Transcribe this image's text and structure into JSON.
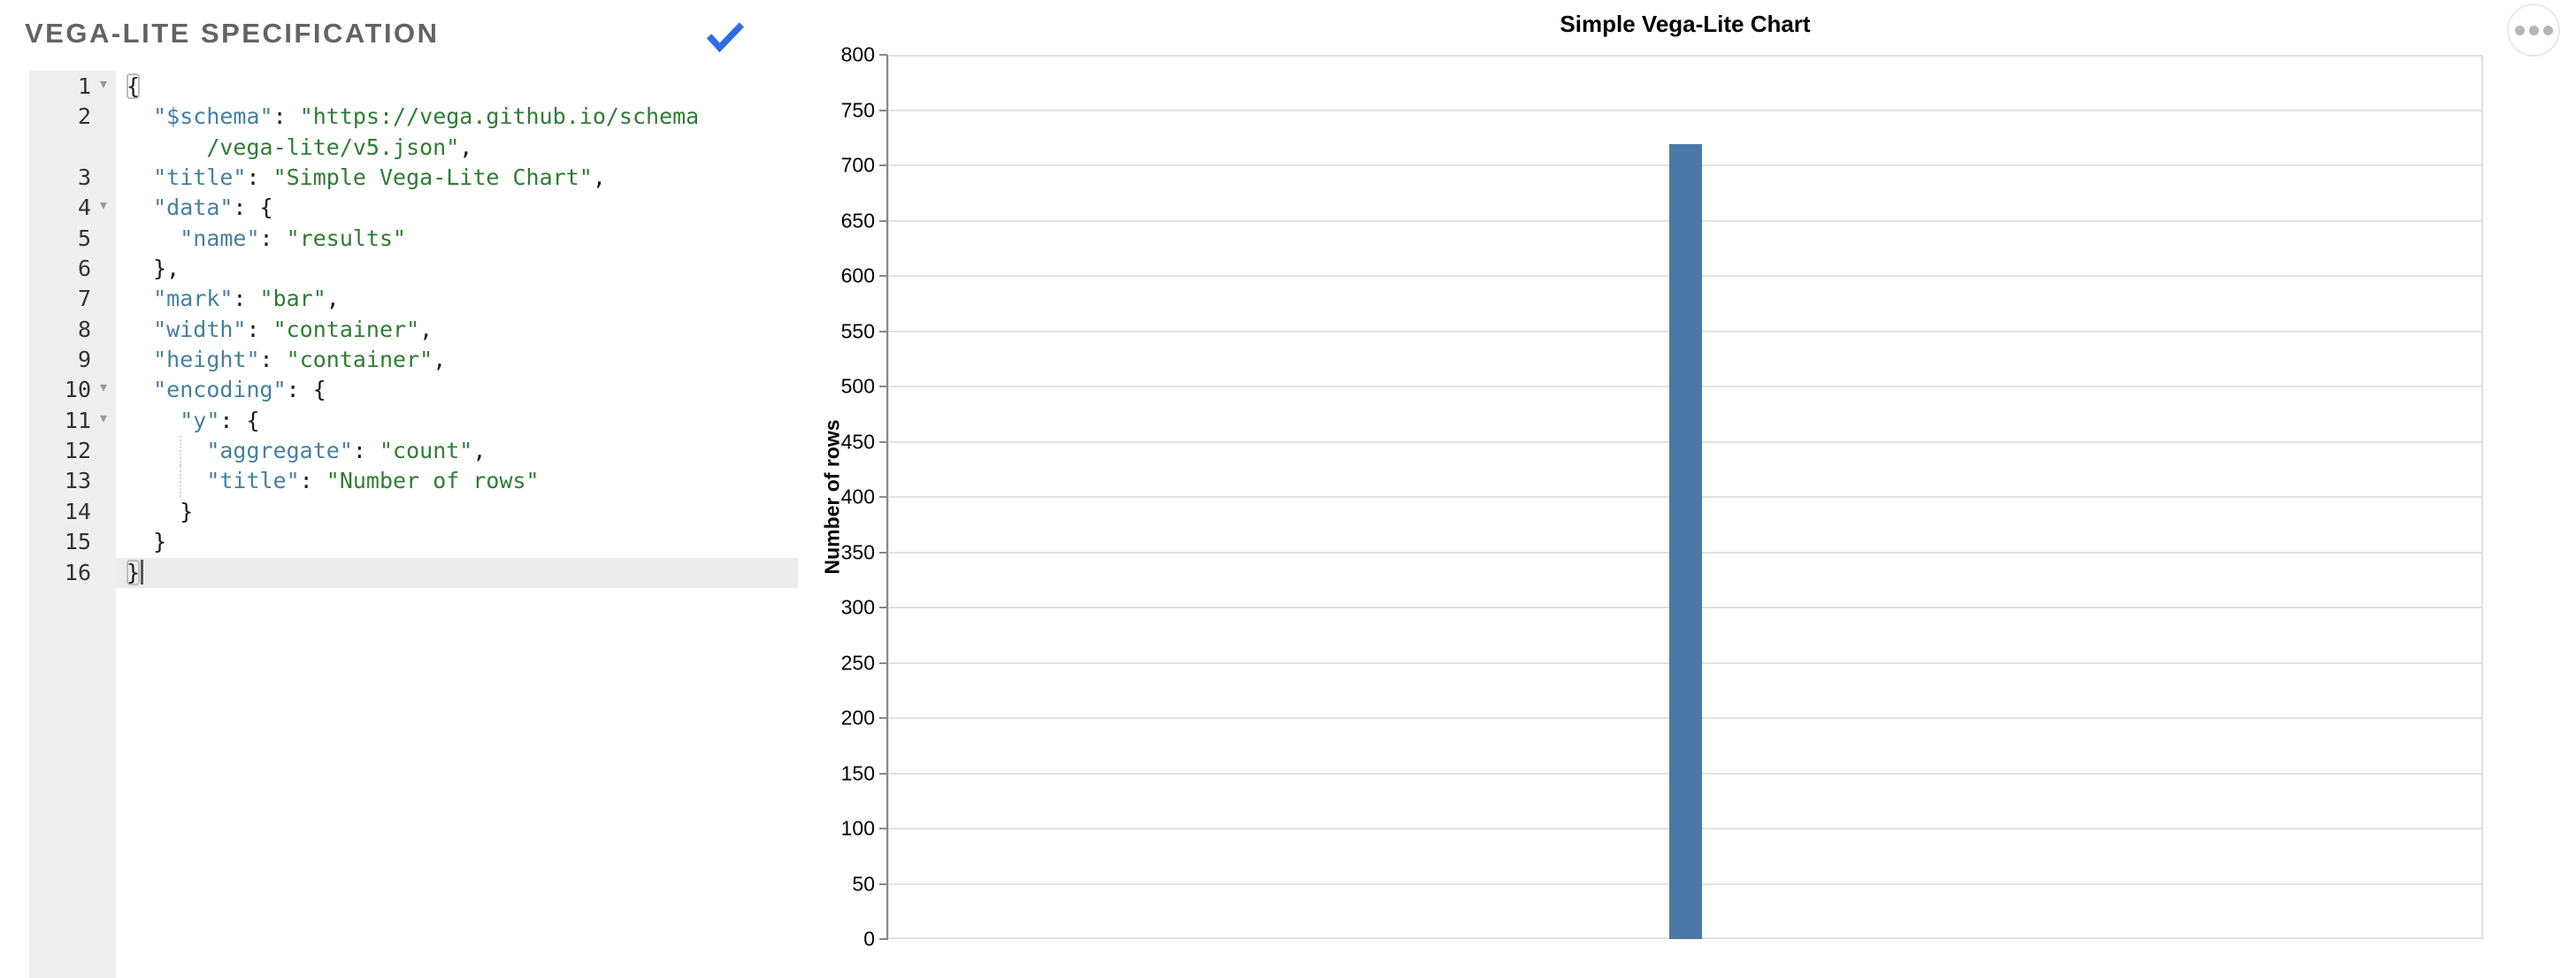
{
  "editor": {
    "title": "VEGA-LITE SPECIFICATION",
    "status_icon": "check-icon",
    "accent_color": "#2f6be4",
    "syntax_colors": {
      "key": "#45809e",
      "string": "#2e7d32",
      "punctuation": "#1a1a1a"
    },
    "lines": [
      {
        "num": "1",
        "fold": true,
        "rows": [
          {
            "indent": 0,
            "seg": [
              [
                "m",
                "{"
              ]
            ]
          }
        ]
      },
      {
        "num": "2",
        "rows": [
          {
            "indent": 2,
            "seg": [
              [
                "k",
                "\"$schema\""
              ],
              [
                "p",
                ": "
              ],
              [
                "s",
                "\"https://vega.github.io/schema"
              ]
            ]
          },
          {
            "indent": 6,
            "seg": [
              [
                "s",
                "/vega-lite/v5.json\""
              ],
              [
                "p",
                ","
              ]
            ]
          }
        ]
      },
      {
        "num": "3",
        "rows": [
          {
            "indent": 2,
            "seg": [
              [
                "k",
                "\"title\""
              ],
              [
                "p",
                ": "
              ],
              [
                "s",
                "\"Simple Vega-Lite Chart\""
              ],
              [
                "p",
                ","
              ]
            ]
          }
        ]
      },
      {
        "num": "4",
        "fold": true,
        "rows": [
          {
            "indent": 2,
            "seg": [
              [
                "k",
                "\"data\""
              ],
              [
                "p",
                ": {"
              ]
            ]
          }
        ]
      },
      {
        "num": "5",
        "rows": [
          {
            "indent": 4,
            "seg": [
              [
                "k",
                "\"name\""
              ],
              [
                "p",
                ": "
              ],
              [
                "s",
                "\"results\""
              ]
            ]
          }
        ]
      },
      {
        "num": "6",
        "rows": [
          {
            "indent": 2,
            "seg": [
              [
                "p",
                "},"
              ]
            ]
          }
        ]
      },
      {
        "num": "7",
        "rows": [
          {
            "indent": 2,
            "seg": [
              [
                "k",
                "\"mark\""
              ],
              [
                "p",
                ": "
              ],
              [
                "s",
                "\"bar\""
              ],
              [
                "p",
                ","
              ]
            ]
          }
        ]
      },
      {
        "num": "8",
        "rows": [
          {
            "indent": 2,
            "seg": [
              [
                "k",
                "\"width\""
              ],
              [
                "p",
                ": "
              ],
              [
                "s",
                "\"container\""
              ],
              [
                "p",
                ","
              ]
            ]
          }
        ]
      },
      {
        "num": "9",
        "rows": [
          {
            "indent": 2,
            "seg": [
              [
                "k",
                "\"height\""
              ],
              [
                "p",
                ": "
              ],
              [
                "s",
                "\"container\""
              ],
              [
                "p",
                ","
              ]
            ]
          }
        ]
      },
      {
        "num": "10",
        "fold": true,
        "rows": [
          {
            "indent": 2,
            "seg": [
              [
                "k",
                "\"encoding\""
              ],
              [
                "p",
                ": {"
              ]
            ]
          }
        ]
      },
      {
        "num": "11",
        "fold": true,
        "rows": [
          {
            "indent": 4,
            "seg": [
              [
                "k",
                "\"y\""
              ],
              [
                "p",
                ": {"
              ]
            ]
          }
        ]
      },
      {
        "num": "12",
        "rows": [
          {
            "indent": 6,
            "guide": true,
            "seg": [
              [
                "k",
                "\"aggregate\""
              ],
              [
                "p",
                ": "
              ],
              [
                "s",
                "\"count\""
              ],
              [
                "p",
                ","
              ]
            ]
          }
        ]
      },
      {
        "num": "13",
        "rows": [
          {
            "indent": 6,
            "guide": true,
            "seg": [
              [
                "k",
                "\"title\""
              ],
              [
                "p",
                ": "
              ],
              [
                "s",
                "\"Number of rows\""
              ]
            ]
          }
        ]
      },
      {
        "num": "14",
        "rows": [
          {
            "indent": 4,
            "seg": [
              [
                "p",
                "}"
              ]
            ]
          }
        ]
      },
      {
        "num": "15",
        "rows": [
          {
            "indent": 2,
            "seg": [
              [
                "p",
                "}"
              ]
            ]
          }
        ]
      },
      {
        "num": "16",
        "active": true,
        "cursor": true,
        "rows": [
          {
            "indent": 0,
            "seg": [
              [
                "m",
                "}"
              ]
            ]
          }
        ]
      }
    ]
  },
  "chart_data": {
    "type": "bar",
    "title": "Simple Vega-Lite Chart",
    "categories": [
      ""
    ],
    "values": [
      719
    ],
    "series_label": "count",
    "xlabel": "",
    "ylabel": "Number of rows",
    "ylim": [
      0,
      800
    ],
    "yticks": [
      0,
      50,
      100,
      150,
      200,
      250,
      300,
      350,
      400,
      450,
      500,
      550,
      600,
      650,
      700,
      750,
      800
    ],
    "grid": true,
    "legend": false,
    "bar_color": "#4c78a8"
  },
  "chart_ui": {
    "actions_icon": "ellipsis-icon"
  }
}
